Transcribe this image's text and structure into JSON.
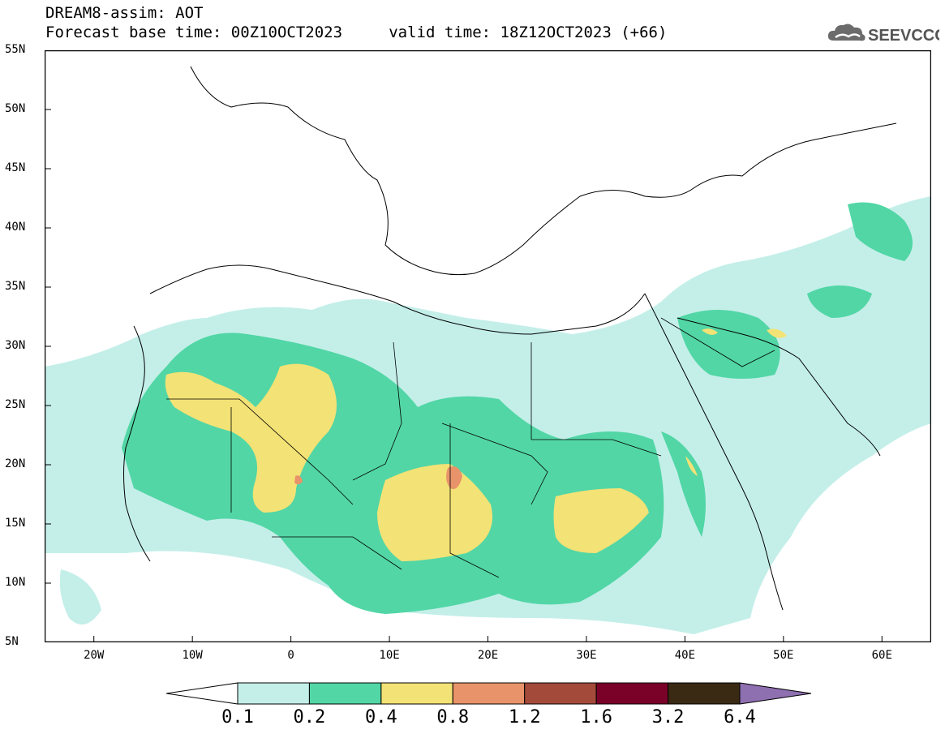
{
  "header": {
    "title_line1": "DREAM8-assim: AOT",
    "title_line2": "Forecast base time: 00Z10OCT2023     valid time: 18Z12OCT2023 (+66)",
    "logo_text": "SEEVCCC"
  },
  "map": {
    "variable": "AOT",
    "lon_range": [
      -25,
      65
    ],
    "lat_range": [
      5,
      55
    ],
    "lat_ticks": [
      "55N",
      "50N",
      "45N",
      "40N",
      "35N",
      "30N",
      "25N",
      "20N",
      "15N",
      "10N",
      "5N"
    ],
    "lon_ticks": [
      "20W",
      "10W",
      "0",
      "10E",
      "20E",
      "30E",
      "40E",
      "50E",
      "60E"
    ],
    "frame_color": "#000000"
  },
  "colorbar": {
    "levels": [
      "0.1",
      "0.2",
      "0.4",
      "0.8",
      "1.2",
      "1.6",
      "3.2",
      "6.4"
    ],
    "colors": [
      "#ffffff",
      "#c4efe9",
      "#52d6a6",
      "#f3e275",
      "#e8936a",
      "#a34a3a",
      "#7a0128",
      "#3a2a14",
      "#8e6fb0"
    ]
  }
}
